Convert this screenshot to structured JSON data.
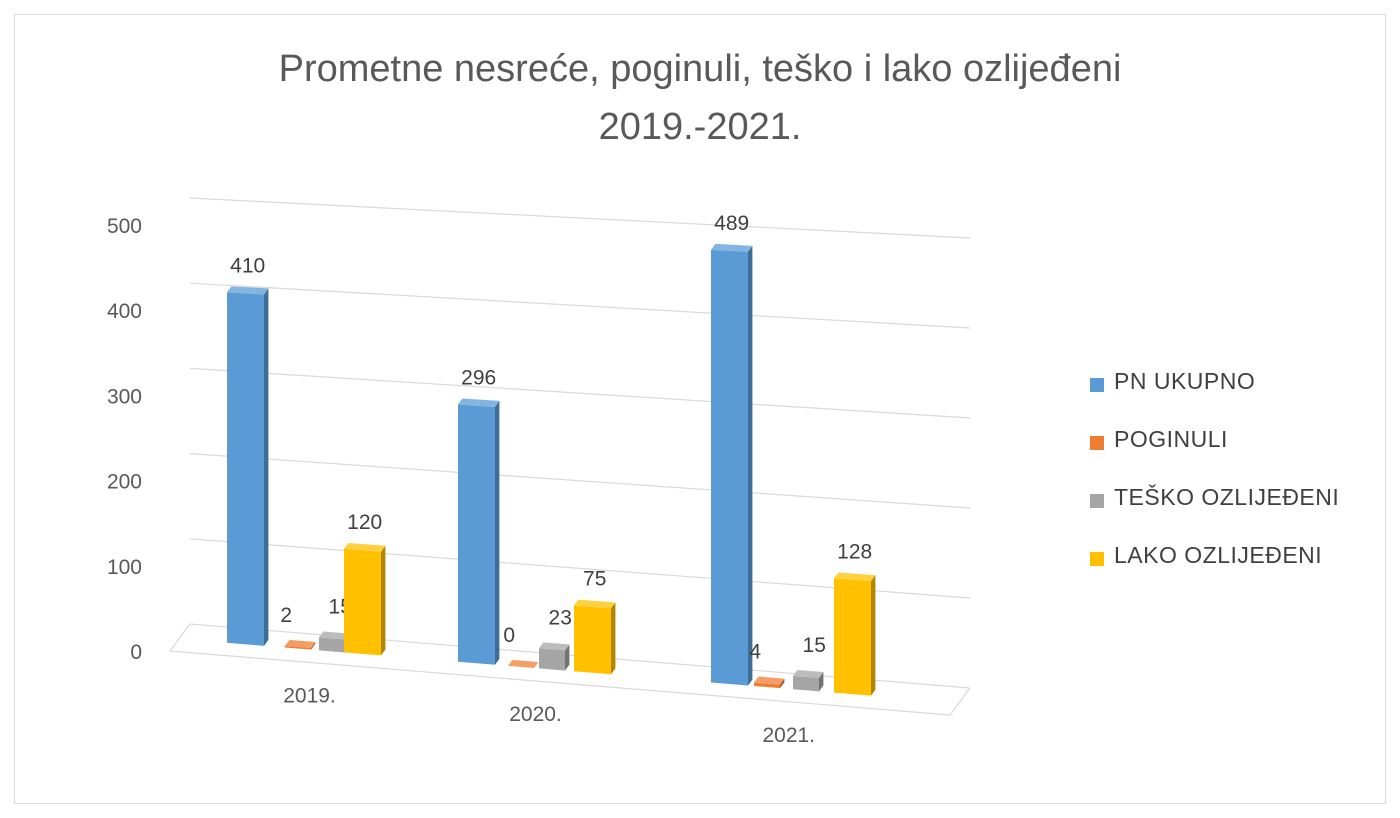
{
  "chart_data": {
    "type": "bar",
    "title_lines": [
      "Prometne nesreće, poginuli, teško i lako  ozlijeđeni",
      "2019.-2021."
    ],
    "categories": [
      "2019.",
      "2020.",
      "2021."
    ],
    "series": [
      {
        "name": "PN UKUPNO",
        "values": [
          410,
          296,
          489
        ],
        "color": "#5b9bd5"
      },
      {
        "name": "POGINULI",
        "values": [
          2,
          0,
          4
        ],
        "color": "#ed7d31"
      },
      {
        "name": "TEŠKO OZLIJEĐENI",
        "values": [
          15,
          23,
          15
        ],
        "color": "#a5a5a5"
      },
      {
        "name": "LAKO OZLIJEĐENI",
        "values": [
          120,
          75,
          128
        ],
        "color": "#ffc000"
      }
    ],
    "ylim": [
      0,
      500
    ],
    "yticks": [
      "0",
      "100",
      "200",
      "300",
      "400",
      "500"
    ],
    "data_labels": [
      [
        "410",
        "2",
        "15",
        "120"
      ],
      [
        "296",
        "0",
        "23",
        "75"
      ],
      [
        "489",
        "4",
        "15",
        "128"
      ]
    ],
    "grid": true,
    "legend_position": "right",
    "style": "3d-clustered-column"
  }
}
